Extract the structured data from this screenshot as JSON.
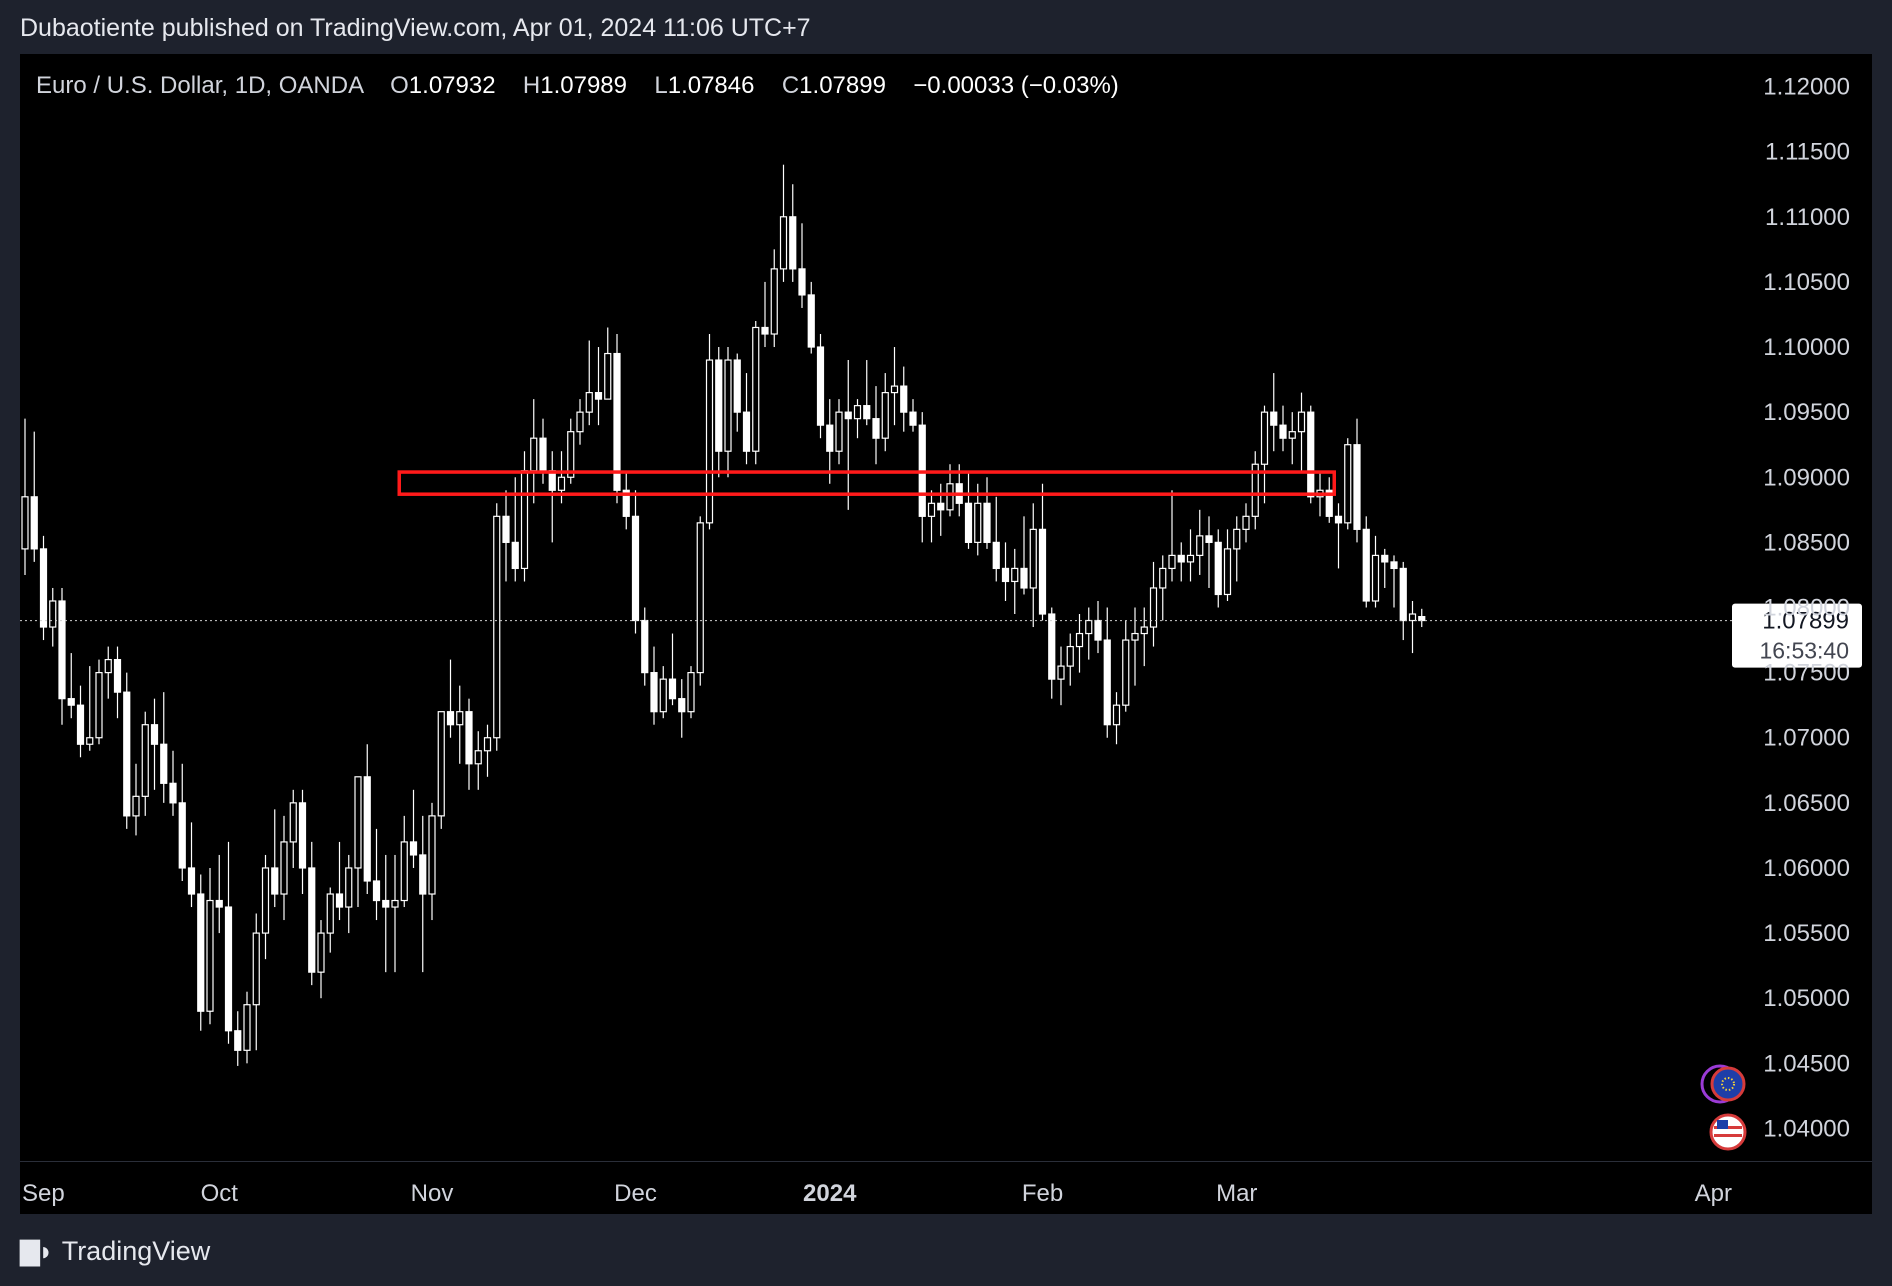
{
  "header": {
    "text": "Dubaotiente published on TradingView.com, Apr 01, 2024 11:06 UTC+7"
  },
  "legend": {
    "symbol": "Euro / U.S. Dollar, 1D, OANDA",
    "o_label": "O",
    "o_value": "1.07932",
    "h_label": "H",
    "h_value": "1.07989",
    "l_label": "L",
    "l_value": "1.07846",
    "c_label": "C",
    "c_value": "1.07899",
    "change": "−0.00033 (−0.03%)"
  },
  "price_tag": {
    "price": "1.07899",
    "countdown": "16:53:40"
  },
  "footer": {
    "brand": "TradingView",
    "logo_icon": "tradingview-logo-icon"
  },
  "colors": {
    "background": "#000000",
    "frame": "#1e222d",
    "candle": "#ffffff",
    "zone": "#ff1a1a",
    "text": "#d1d4dc"
  },
  "chart_data": {
    "type": "candlestick",
    "title": "Euro / U.S. Dollar, 1D, OANDA",
    "ylim": [
      1.0375,
      1.1225
    ],
    "y_ticks": [
      "1.12000",
      "1.11500",
      "1.11000",
      "1.10500",
      "1.10000",
      "1.09500",
      "1.09000",
      "1.08500",
      "1.08000",
      "1.07500",
      "1.07000",
      "1.06500",
      "1.06000",
      "1.05500",
      "1.05000",
      "1.04500",
      "1.04000"
    ],
    "x_ticks": [
      {
        "label": "Sep",
        "index": 0,
        "bold": false
      },
      {
        "label": "Oct",
        "index": 21,
        "bold": false
      },
      {
        "label": "Nov",
        "index": 44,
        "bold": false
      },
      {
        "label": "Dec",
        "index": 66,
        "bold": false
      },
      {
        "label": "2024",
        "index": 87,
        "bold": true
      },
      {
        "label": "Feb",
        "index": 110,
        "bold": false
      },
      {
        "label": "Mar",
        "index": 131,
        "bold": false
      },
      {
        "label": "Apr",
        "index": 152,
        "bold": false
      }
    ],
    "last_price": 1.07899,
    "zone": {
      "from_index": 41,
      "to_index": 141,
      "low": 1.0887,
      "high": 1.0904
    },
    "candles": [
      [
        1.0845,
        1.0945,
        1.0825,
        1.0885
      ],
      [
        1.0885,
        1.0935,
        1.0835,
        1.0845
      ],
      [
        1.0845,
        1.0855,
        1.0775,
        1.0785
      ],
      [
        1.0785,
        1.0815,
        1.077,
        1.0805
      ],
      [
        1.0805,
        1.0815,
        1.071,
        1.073
      ],
      [
        1.073,
        1.0765,
        1.0715,
        1.0725
      ],
      [
        1.0725,
        1.074,
        1.0685,
        1.0695
      ],
      [
        1.0695,
        1.0755,
        1.069,
        1.07
      ],
      [
        1.07,
        1.076,
        1.0695,
        1.075
      ],
      [
        1.075,
        1.077,
        1.073,
        1.076
      ],
      [
        1.076,
        1.077,
        1.0715,
        1.0735
      ],
      [
        1.0735,
        1.075,
        1.063,
        1.064
      ],
      [
        1.064,
        1.068,
        1.0625,
        1.0655
      ],
      [
        1.0655,
        1.072,
        1.064,
        1.071
      ],
      [
        1.071,
        1.073,
        1.066,
        1.0695
      ],
      [
        1.0695,
        1.0735,
        1.065,
        1.0665
      ],
      [
        1.0665,
        1.069,
        1.064,
        1.065
      ],
      [
        1.065,
        1.068,
        1.059,
        1.06
      ],
      [
        1.06,
        1.0635,
        1.057,
        1.058
      ],
      [
        1.058,
        1.0595,
        1.0475,
        1.049
      ],
      [
        1.049,
        1.06,
        1.048,
        1.0575
      ],
      [
        1.0575,
        1.061,
        1.055,
        1.057
      ],
      [
        1.057,
        1.062,
        1.0465,
        1.0475
      ],
      [
        1.0475,
        1.049,
        1.0448,
        1.046
      ],
      [
        1.046,
        1.0505,
        1.045,
        1.0495
      ],
      [
        1.0495,
        1.0565,
        1.046,
        1.055
      ],
      [
        1.055,
        1.061,
        1.053,
        1.06
      ],
      [
        1.06,
        1.0645,
        1.057,
        1.058
      ],
      [
        1.058,
        1.064,
        1.056,
        1.062
      ],
      [
        1.062,
        1.066,
        1.06,
        1.065
      ],
      [
        1.065,
        1.066,
        1.058,
        1.06
      ],
      [
        1.06,
        1.062,
        1.051,
        1.052
      ],
      [
        1.052,
        1.056,
        1.05,
        1.055
      ],
      [
        1.055,
        1.0585,
        1.0535,
        1.058
      ],
      [
        1.058,
        1.062,
        1.056,
        1.057
      ],
      [
        1.057,
        1.061,
        1.055,
        1.06
      ],
      [
        1.06,
        1.067,
        1.057,
        1.067
      ],
      [
        1.067,
        1.0695,
        1.058,
        1.059
      ],
      [
        1.059,
        1.063,
        1.056,
        1.0575
      ],
      [
        1.0575,
        1.061,
        1.052,
        1.057
      ],
      [
        1.057,
        1.061,
        1.052,
        1.0575
      ],
      [
        1.0575,
        1.064,
        1.057,
        1.062
      ],
      [
        1.062,
        1.066,
        1.06,
        1.061
      ],
      [
        1.061,
        1.064,
        1.052,
        1.058
      ],
      [
        1.058,
        1.065,
        1.056,
        1.064
      ],
      [
        1.064,
        1.072,
        1.063,
        1.072
      ],
      [
        1.072,
        1.076,
        1.07,
        1.071
      ],
      [
        1.071,
        1.074,
        1.068,
        1.072
      ],
      [
        1.072,
        1.073,
        1.066,
        1.068
      ],
      [
        1.068,
        1.0705,
        1.066,
        1.069
      ],
      [
        1.069,
        1.071,
        1.067,
        1.07
      ],
      [
        1.07,
        1.088,
        1.069,
        1.087
      ],
      [
        1.087,
        1.089,
        1.082,
        1.085
      ],
      [
        1.085,
        1.09,
        1.082,
        1.083
      ],
      [
        1.083,
        1.092,
        1.082,
        1.0905
      ],
      [
        1.0905,
        1.096,
        1.088,
        1.093
      ],
      [
        1.093,
        1.0945,
        1.0895,
        1.0905
      ],
      [
        1.0905,
        1.092,
        1.085,
        1.089
      ],
      [
        1.089,
        1.092,
        1.088,
        1.09
      ],
      [
        1.09,
        1.0945,
        1.0895,
        1.0935
      ],
      [
        1.0935,
        1.096,
        1.0925,
        1.095
      ],
      [
        1.095,
        1.1005,
        1.094,
        1.0965
      ],
      [
        1.0965,
        1.1,
        1.094,
        1.096
      ],
      [
        1.096,
        1.1015,
        1.096,
        1.0995
      ],
      [
        1.0995,
        1.101,
        1.088,
        1.089
      ],
      [
        1.089,
        1.0905,
        1.086,
        1.087
      ],
      [
        1.087,
        1.089,
        1.078,
        1.079
      ],
      [
        1.079,
        1.08,
        1.074,
        1.075
      ],
      [
        1.075,
        1.077,
        1.071,
        1.072
      ],
      [
        1.072,
        1.0755,
        1.0715,
        1.0745
      ],
      [
        1.0745,
        1.078,
        1.0725,
        1.073
      ],
      [
        1.073,
        1.0745,
        1.07,
        1.072
      ],
      [
        1.072,
        1.0755,
        1.0715,
        1.075
      ],
      [
        1.075,
        1.087,
        1.074,
        1.0865
      ],
      [
        1.0865,
        1.101,
        1.086,
        1.099
      ],
      [
        1.099,
        1.1,
        1.09,
        1.092
      ],
      [
        1.092,
        1.1,
        1.09,
        1.099
      ],
      [
        1.099,
        1.0995,
        1.0935,
        1.095
      ],
      [
        1.095,
        1.098,
        1.091,
        1.092
      ],
      [
        1.092,
        1.102,
        1.091,
        1.1015
      ],
      [
        1.1015,
        1.105,
        1.1,
        1.101
      ],
      [
        1.101,
        1.1075,
        1.1,
        1.106
      ],
      [
        1.106,
        1.114,
        1.105,
        1.11
      ],
      [
        1.11,
        1.1125,
        1.105,
        1.106
      ],
      [
        1.106,
        1.1095,
        1.103,
        1.104
      ],
      [
        1.104,
        1.105,
        1.0995,
        1.1
      ],
      [
        1.1,
        1.101,
        1.093,
        1.094
      ],
      [
        1.094,
        1.096,
        1.0895,
        1.092
      ],
      [
        1.092,
        1.096,
        1.091,
        1.095
      ],
      [
        1.095,
        1.099,
        1.0875,
        1.0945
      ],
      [
        1.0945,
        1.096,
        1.093,
        1.0955
      ],
      [
        1.0955,
        1.099,
        1.094,
        1.0945
      ],
      [
        1.0945,
        1.097,
        1.091,
        1.093
      ],
      [
        1.093,
        1.098,
        1.092,
        1.0965
      ],
      [
        1.0965,
        1.1,
        1.094,
        1.097
      ],
      [
        1.097,
        1.0985,
        1.0935,
        1.095
      ],
      [
        1.095,
        1.096,
        1.0935,
        1.094
      ],
      [
        1.094,
        1.095,
        1.085,
        1.087
      ],
      [
        1.087,
        1.089,
        1.085,
        1.088
      ],
      [
        1.088,
        1.0895,
        1.0855,
        1.0875
      ],
      [
        1.0875,
        1.091,
        1.087,
        1.0895
      ],
      [
        1.0895,
        1.091,
        1.087,
        1.088
      ],
      [
        1.088,
        1.0905,
        1.0845,
        1.085
      ],
      [
        1.085,
        1.0895,
        1.084,
        1.088
      ],
      [
        1.088,
        1.09,
        1.0845,
        1.085
      ],
      [
        1.085,
        1.0885,
        1.082,
        1.083
      ],
      [
        1.083,
        1.085,
        1.0805,
        1.082
      ],
      [
        1.082,
        1.0845,
        1.0795,
        1.083
      ],
      [
        1.083,
        1.087,
        1.081,
        1.0815
      ],
      [
        1.0815,
        1.088,
        1.0785,
        1.086
      ],
      [
        1.086,
        1.0895,
        1.079,
        1.0795
      ],
      [
        1.0795,
        1.08,
        1.073,
        1.0745
      ],
      [
        1.0745,
        1.077,
        1.0725,
        1.0755
      ],
      [
        1.0755,
        1.078,
        1.074,
        1.077
      ],
      [
        1.077,
        1.0795,
        1.075,
        1.078
      ],
      [
        1.078,
        1.08,
        1.076,
        1.079
      ],
      [
        1.079,
        1.0805,
        1.0765,
        1.0775
      ],
      [
        1.0775,
        1.08,
        1.07,
        1.071
      ],
      [
        1.071,
        1.0735,
        1.0695,
        1.0725
      ],
      [
        1.0725,
        1.079,
        1.072,
        1.0775
      ],
      [
        1.0775,
        1.08,
        1.074,
        1.078
      ],
      [
        1.078,
        1.08,
        1.0755,
        1.0785
      ],
      [
        1.0785,
        1.0835,
        1.077,
        1.0815
      ],
      [
        1.0815,
        1.084,
        1.079,
        1.083
      ],
      [
        1.083,
        1.089,
        1.082,
        1.084
      ],
      [
        1.084,
        1.085,
        1.082,
        1.0835
      ],
      [
        1.0835,
        1.086,
        1.082,
        1.084
      ],
      [
        1.084,
        1.0875,
        1.0825,
        1.0855
      ],
      [
        1.0855,
        1.087,
        1.0815,
        1.085
      ],
      [
        1.085,
        1.086,
        1.08,
        1.081
      ],
      [
        1.081,
        1.086,
        1.0805,
        1.0845
      ],
      [
        1.0845,
        1.087,
        1.082,
        1.086
      ],
      [
        1.086,
        1.088,
        1.085,
        1.087
      ],
      [
        1.087,
        1.092,
        1.086,
        1.091
      ],
      [
        1.091,
        1.0955,
        1.088,
        1.095
      ],
      [
        1.095,
        1.098,
        1.092,
        1.094
      ],
      [
        1.094,
        1.0955,
        1.092,
        1.093
      ],
      [
        1.093,
        1.095,
        1.091,
        1.0935
      ],
      [
        1.0935,
        1.0965,
        1.0905,
        1.095
      ],
      [
        1.095,
        1.0955,
        1.088,
        1.0885
      ],
      [
        1.0885,
        1.0905,
        1.087,
        1.089
      ],
      [
        1.089,
        1.09,
        1.0865,
        1.087
      ],
      [
        1.087,
        1.088,
        1.083,
        1.0865
      ],
      [
        1.0865,
        1.093,
        1.086,
        1.0925
      ],
      [
        1.0925,
        1.0945,
        1.085,
        1.086
      ],
      [
        1.086,
        1.087,
        1.08,
        1.0805
      ],
      [
        1.0805,
        1.0855,
        1.08,
        1.084
      ],
      [
        1.084,
        1.0845,
        1.0815,
        1.0835
      ],
      [
        1.0835,
        1.084,
        1.08,
        1.083
      ],
      [
        1.083,
        1.0835,
        1.0775,
        1.079
      ],
      [
        1.079,
        1.0805,
        1.0765,
        1.0795
      ],
      [
        1.0793,
        1.0799,
        1.0785,
        1.079
      ]
    ]
  }
}
